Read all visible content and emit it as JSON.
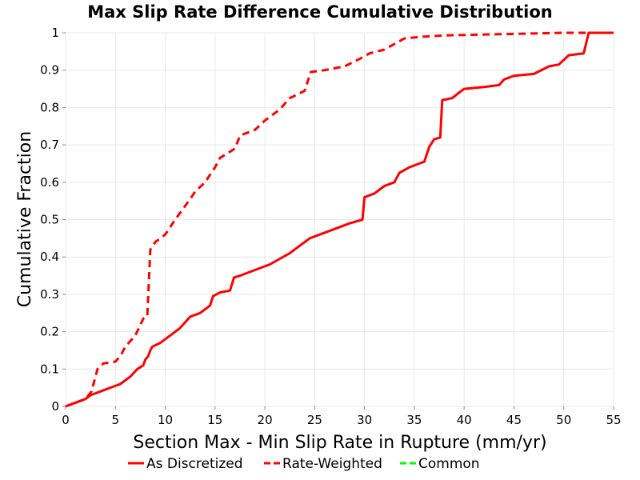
{
  "chart_data": {
    "type": "line",
    "title": "Max Slip Rate Difference Cumulative Distribution",
    "xlabel": "Section Max - Min Slip Rate in Rupture (mm/yr)",
    "ylabel": "Cumulative Fraction",
    "xlim": [
      0,
      55
    ],
    "ylim": [
      0,
      1
    ],
    "x_ticks": [
      "0",
      "5",
      "10",
      "15",
      "20",
      "25",
      "30",
      "35",
      "40",
      "45",
      "50",
      "55"
    ],
    "y_ticks": [
      "0",
      "0.1",
      "0.2",
      "0.3",
      "0.4",
      "0.5",
      "0.6",
      "0.7",
      "0.8",
      "0.9",
      "1"
    ],
    "grid": true,
    "legend_position": "bottom",
    "series": [
      {
        "name": "As Discretized",
        "color": "#ff0000",
        "dash": "solid",
        "points": [
          [
            0,
            0
          ],
          [
            1,
            0.01
          ],
          [
            2,
            0.02
          ],
          [
            2.5,
            0.03
          ],
          [
            3.5,
            0.04
          ],
          [
            4.5,
            0.05
          ],
          [
            5.5,
            0.06
          ],
          [
            6.5,
            0.08
          ],
          [
            7.2,
            0.1
          ],
          [
            7.8,
            0.11
          ],
          [
            8,
            0.125
          ],
          [
            8.3,
            0.135
          ],
          [
            8.5,
            0.15
          ],
          [
            8.7,
            0.16
          ],
          [
            9.5,
            0.17
          ],
          [
            10.5,
            0.19
          ],
          [
            11.5,
            0.21
          ],
          [
            12.5,
            0.24
          ],
          [
            13.5,
            0.25
          ],
          [
            14.5,
            0.27
          ],
          [
            14.8,
            0.295
          ],
          [
            15.5,
            0.305
          ],
          [
            16.5,
            0.31
          ],
          [
            16.9,
            0.345
          ],
          [
            17.5,
            0.35
          ],
          [
            18.5,
            0.36
          ],
          [
            20.5,
            0.38
          ],
          [
            22.5,
            0.41
          ],
          [
            23.5,
            0.43
          ],
          [
            24.5,
            0.45
          ],
          [
            25.5,
            0.46
          ],
          [
            27,
            0.475
          ],
          [
            28.5,
            0.49
          ],
          [
            29.8,
            0.5
          ],
          [
            30,
            0.56
          ],
          [
            31,
            0.57
          ],
          [
            32,
            0.59
          ],
          [
            33,
            0.6
          ],
          [
            33.5,
            0.625
          ],
          [
            34.5,
            0.64
          ],
          [
            35.5,
            0.65
          ],
          [
            36,
            0.655
          ],
          [
            36.5,
            0.695
          ],
          [
            37,
            0.715
          ],
          [
            37.6,
            0.72
          ],
          [
            37.8,
            0.82
          ],
          [
            38.8,
            0.825
          ],
          [
            39.5,
            0.84
          ],
          [
            40,
            0.85
          ],
          [
            42,
            0.855
          ],
          [
            43.5,
            0.86
          ],
          [
            44,
            0.875
          ],
          [
            45,
            0.885
          ],
          [
            47,
            0.89
          ],
          [
            48.5,
            0.91
          ],
          [
            49.5,
            0.915
          ],
          [
            50.5,
            0.94
          ],
          [
            52,
            0.945
          ],
          [
            52.5,
            1
          ],
          [
            55,
            1
          ]
        ]
      },
      {
        "name": "Rate-Weighted",
        "color": "#ff0000",
        "dash": "dashed",
        "points": [
          [
            0,
            0
          ],
          [
            1,
            0.01
          ],
          [
            2,
            0.02
          ],
          [
            2.6,
            0.04
          ],
          [
            3.2,
            0.1
          ],
          [
            3.8,
            0.115
          ],
          [
            5,
            0.12
          ],
          [
            5.5,
            0.135
          ],
          [
            6,
            0.16
          ],
          [
            7,
            0.19
          ],
          [
            7.8,
            0.235
          ],
          [
            8.2,
            0.24
          ],
          [
            8.5,
            0.42
          ],
          [
            9,
            0.44
          ],
          [
            10,
            0.46
          ],
          [
            11,
            0.5
          ],
          [
            12.5,
            0.555
          ],
          [
            13,
            0.575
          ],
          [
            14,
            0.6
          ],
          [
            15,
            0.64
          ],
          [
            15.5,
            0.665
          ],
          [
            17,
            0.69
          ],
          [
            17.5,
            0.725
          ],
          [
            19,
            0.74
          ],
          [
            20,
            0.765
          ],
          [
            21.5,
            0.795
          ],
          [
            22.5,
            0.825
          ],
          [
            24,
            0.845
          ],
          [
            24.6,
            0.895
          ],
          [
            26,
            0.9
          ],
          [
            28,
            0.91
          ],
          [
            29.5,
            0.93
          ],
          [
            30.5,
            0.945
          ],
          [
            32,
            0.955
          ],
          [
            33,
            0.97
          ],
          [
            34,
            0.985
          ],
          [
            36,
            0.99
          ],
          [
            38,
            0.993
          ],
          [
            45,
            0.997
          ],
          [
            50,
            1
          ],
          [
            55,
            1
          ]
        ]
      },
      {
        "name": "Common",
        "color": "#00ff00",
        "dash": "dashed",
        "points": []
      }
    ]
  }
}
